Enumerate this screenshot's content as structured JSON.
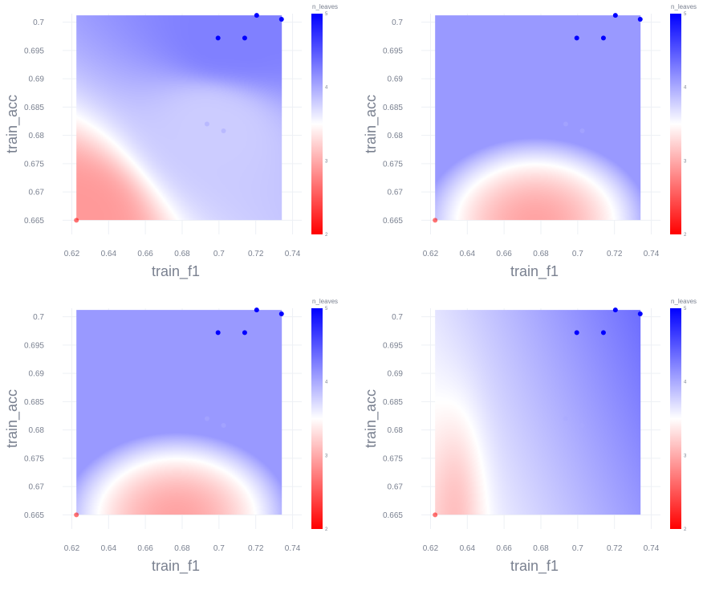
{
  "colors": {
    "low": "#ff0000",
    "mid": "#ffffff",
    "high": "#0000ff",
    "grid": "#edf0f5",
    "text": "#7a8190"
  },
  "chart_data": [
    {
      "type": "heatmap",
      "xlabel": "train_f1",
      "ylabel": "train_acc",
      "xlim": [
        0.615,
        0.745
      ],
      "ylim": [
        0.6625,
        0.7015
      ],
      "xticks": [
        "0.62",
        "0.64",
        "0.66",
        "0.68",
        "0.7",
        "0.72",
        "0.74"
      ],
      "yticks": [
        "0.665",
        "0.67",
        "0.675",
        "0.68",
        "0.685",
        "0.69",
        "0.695",
        "0.7"
      ],
      "colorbar": {
        "title": "n_leaves",
        "range": [
          2,
          5
        ],
        "ticks": [
          "2",
          "3",
          "4",
          "5"
        ]
      },
      "surface": {
        "kind": "idw"
      },
      "points": [
        {
          "x": 0.6225,
          "y": 0.665,
          "n_leaves": 2
        },
        {
          "x": 0.6935,
          "y": 0.682,
          "n_leaves": 4
        },
        {
          "x": 0.7025,
          "y": 0.6808,
          "n_leaves": 4
        },
        {
          "x": 0.6995,
          "y": 0.6972,
          "n_leaves": 5
        },
        {
          "x": 0.714,
          "y": 0.6972,
          "n_leaves": 5
        },
        {
          "x": 0.7205,
          "y": 0.7012,
          "n_leaves": 5
        },
        {
          "x": 0.734,
          "y": 0.7005,
          "n_leaves": 5
        }
      ]
    },
    {
      "type": "heatmap",
      "xlabel": "train_f1",
      "ylabel": "train_acc",
      "xlim": [
        0.615,
        0.745
      ],
      "ylim": [
        0.6625,
        0.7015
      ],
      "xticks": [
        "0.62",
        "0.64",
        "0.66",
        "0.68",
        "0.7",
        "0.72",
        "0.74"
      ],
      "yticks": [
        "0.665",
        "0.67",
        "0.675",
        "0.68",
        "0.685",
        "0.69",
        "0.695",
        "0.7"
      ],
      "colorbar": {
        "title": "n_leaves",
        "range": [
          2,
          5
        ],
        "ticks": [
          "2",
          "3",
          "4",
          "5"
        ]
      },
      "surface": {
        "kind": "dome",
        "center": [
          0.677,
          0.6645
        ],
        "rx": 0.062,
        "ry": 0.015
      },
      "points": [
        {
          "x": 0.6225,
          "y": 0.665,
          "n_leaves": 2
        },
        {
          "x": 0.6935,
          "y": 0.682,
          "n_leaves": 4
        },
        {
          "x": 0.7025,
          "y": 0.6808,
          "n_leaves": 4
        },
        {
          "x": 0.6995,
          "y": 0.6972,
          "n_leaves": 5
        },
        {
          "x": 0.714,
          "y": 0.6972,
          "n_leaves": 5
        },
        {
          "x": 0.7205,
          "y": 0.7012,
          "n_leaves": 5
        },
        {
          "x": 0.734,
          "y": 0.7005,
          "n_leaves": 5
        }
      ]
    },
    {
      "type": "heatmap",
      "xlabel": "train_f1",
      "ylabel": "train_acc",
      "xlim": [
        0.615,
        0.745
      ],
      "ylim": [
        0.6625,
        0.7015
      ],
      "xticks": [
        "0.62",
        "0.64",
        "0.66",
        "0.68",
        "0.7",
        "0.72",
        "0.74"
      ],
      "yticks": [
        "0.665",
        "0.67",
        "0.675",
        "0.68",
        "0.685",
        "0.69",
        "0.695",
        "0.7"
      ],
      "colorbar": {
        "title": "n_leaves",
        "range": [
          2,
          5
        ],
        "ticks": [
          "2",
          "3",
          "4",
          "5"
        ]
      },
      "surface": {
        "kind": "dome",
        "center": [
          0.677,
          0.6645
        ],
        "rx": 0.062,
        "ry": 0.015
      },
      "points": [
        {
          "x": 0.6225,
          "y": 0.665,
          "n_leaves": 2
        },
        {
          "x": 0.6935,
          "y": 0.682,
          "n_leaves": 4
        },
        {
          "x": 0.7025,
          "y": 0.6808,
          "n_leaves": 4
        },
        {
          "x": 0.6995,
          "y": 0.6972,
          "n_leaves": 5
        },
        {
          "x": 0.714,
          "y": 0.6972,
          "n_leaves": 5
        },
        {
          "x": 0.7205,
          "y": 0.7012,
          "n_leaves": 5
        },
        {
          "x": 0.734,
          "y": 0.7005,
          "n_leaves": 5
        }
      ]
    },
    {
      "type": "heatmap",
      "xlabel": "train_f1",
      "ylabel": "train_acc",
      "xlim": [
        0.615,
        0.745
      ],
      "ylim": [
        0.6625,
        0.7015
      ],
      "xticks": [
        "0.62",
        "0.64",
        "0.66",
        "0.68",
        "0.7",
        "0.72",
        "0.74"
      ],
      "yticks": [
        "0.665",
        "0.67",
        "0.675",
        "0.68",
        "0.685",
        "0.69",
        "0.695",
        "0.7"
      ],
      "colorbar": {
        "title": "n_leaves",
        "range": [
          2,
          5
        ],
        "ticks": [
          "2",
          "3",
          "4",
          "5"
        ]
      },
      "surface": {
        "kind": "linear"
      },
      "points": [
        {
          "x": 0.6225,
          "y": 0.665,
          "n_leaves": 2
        },
        {
          "x": 0.6935,
          "y": 0.682,
          "n_leaves": 4
        },
        {
          "x": 0.7025,
          "y": 0.6808,
          "n_leaves": 4
        },
        {
          "x": 0.6995,
          "y": 0.6972,
          "n_leaves": 5
        },
        {
          "x": 0.714,
          "y": 0.6972,
          "n_leaves": 5
        },
        {
          "x": 0.7205,
          "y": 0.7012,
          "n_leaves": 5
        },
        {
          "x": 0.734,
          "y": 0.7005,
          "n_leaves": 5
        }
      ]
    }
  ]
}
